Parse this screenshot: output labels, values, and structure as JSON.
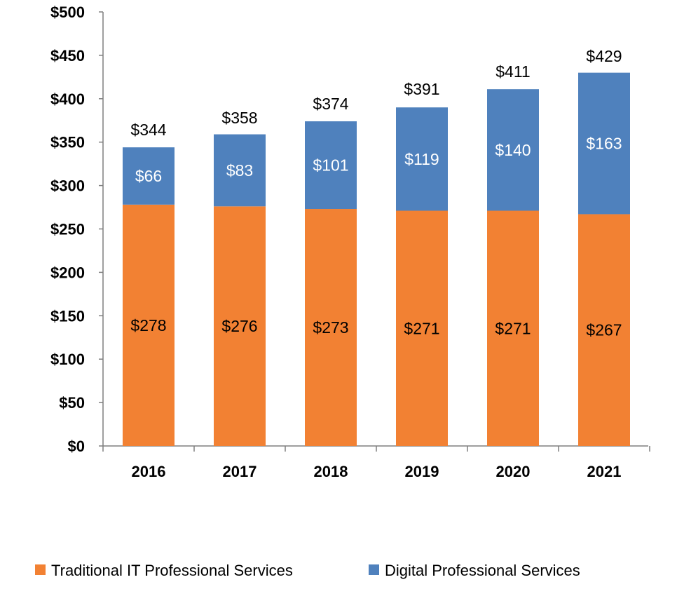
{
  "chart_data": {
    "type": "bar",
    "stacked": true,
    "categories": [
      "2016",
      "2017",
      "2018",
      "2019",
      "2020",
      "2021"
    ],
    "series": [
      {
        "name": "Traditional IT Professional Services",
        "values": [
          278,
          276,
          273,
          271,
          271,
          267
        ],
        "color": "#F28133",
        "label_color": "#000000"
      },
      {
        "name": "Digital Professional Services",
        "values": [
          66,
          83,
          101,
          119,
          140,
          163
        ],
        "color": "#4F81BD",
        "label_color": "#FFFFFF"
      }
    ],
    "totals": [
      344,
      358,
      374,
      391,
      411,
      429
    ],
    "ylim": [
      0,
      500
    ],
    "yticks": [
      0,
      50,
      100,
      150,
      200,
      250,
      300,
      350,
      400,
      450,
      500
    ],
    "tick_prefix": "$",
    "legend_position": "bottom",
    "grid": false
  }
}
